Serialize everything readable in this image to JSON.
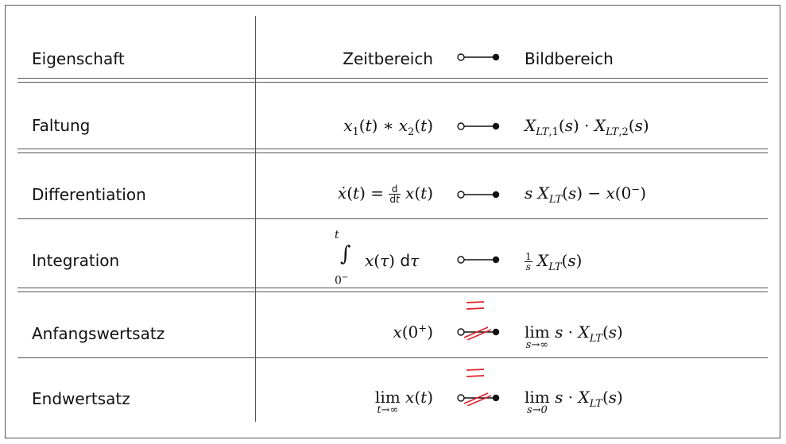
{
  "header": {
    "property": "Eigenschaft",
    "time_domain": "Zeitbereich",
    "image_domain": "Bildbereich"
  },
  "rows": [
    {
      "property": "Faltung"
    },
    {
      "property": "Differentiation"
    },
    {
      "property": "Integration"
    },
    {
      "property": "Anfangswertsatz"
    },
    {
      "property": "Endwertsatz"
    }
  ],
  "symbols": {
    "correspondence": "open-to-filled-dot-correspondence",
    "red_correction": "red-equals-overwrite"
  },
  "colors": {
    "rules": "#555555",
    "text": "#111111",
    "correction": "#e0202a"
  }
}
